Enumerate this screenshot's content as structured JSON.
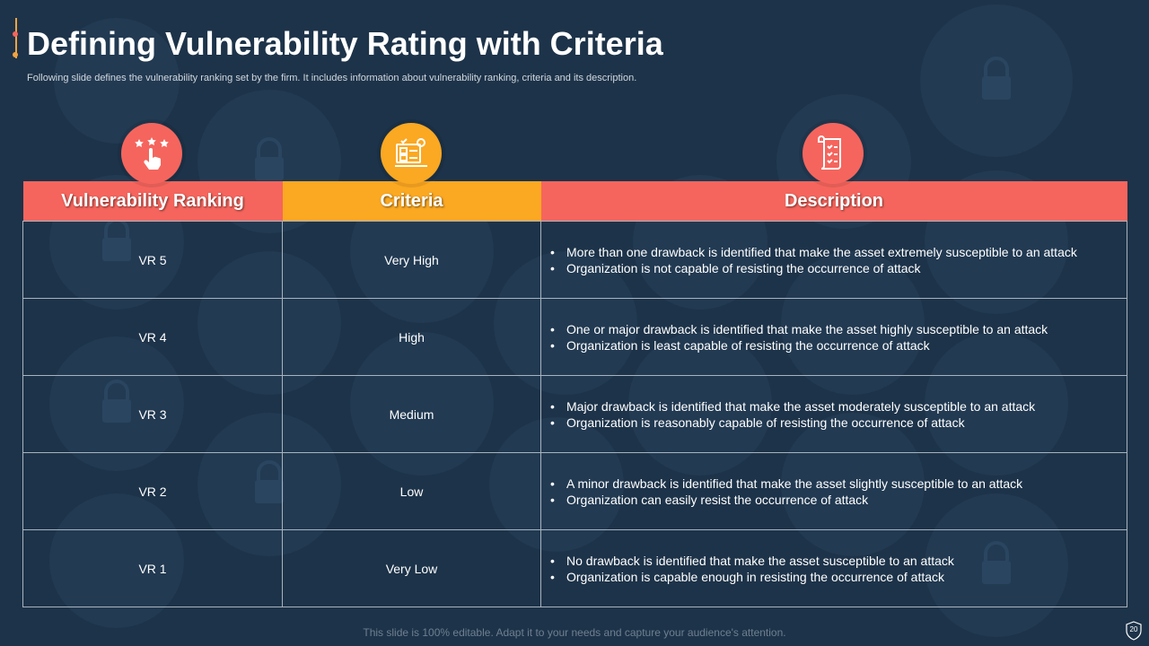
{
  "slide": {
    "title": "Defining Vulnerability Rating with Criteria",
    "subtitle": "Following slide defines the vulnerability ranking set by the firm. It includes information about vulnerability ranking, criteria and its description.",
    "footer": "This slide is 100% editable. Adapt it to your needs and capture your audience's attention.",
    "page_number": "20"
  },
  "colors": {
    "background": "#1d3349",
    "coral": "#f5655d",
    "orange": "#fba822",
    "accent_bar": "#f4a340"
  },
  "icons": {
    "ranking": "star-rating-hand-icon",
    "criteria": "checklist-gear-icon",
    "description": "document-list-icon"
  },
  "table": {
    "headers": [
      "Vulnerability  Ranking",
      "Criteria",
      "Description"
    ],
    "rows": [
      {
        "rank": "VR 5",
        "criteria": "Very High",
        "desc": [
          "More than one drawback is identified that make the asset extremely susceptible to an attack",
          "Organization is not capable of resisting the occurrence of attack"
        ]
      },
      {
        "rank": "VR 4",
        "criteria": "High",
        "desc": [
          "One or major drawback is identified that make the asset highly susceptible to an attack",
          "Organization is least capable of resisting the occurrence of attack"
        ]
      },
      {
        "rank": "VR 3",
        "criteria": "Medium",
        "desc": [
          "Major drawback is identified that make the asset moderately susceptible to an attack",
          "Organization is reasonably capable of resisting the occurrence of attack"
        ]
      },
      {
        "rank": "VR 2",
        "criteria": "Low",
        "desc": [
          "A minor drawback is identified that make the asset slightly susceptible to an attack",
          "Organization can easily resist the occurrence of attack"
        ]
      },
      {
        "rank": "VR 1",
        "criteria": "Very Low",
        "desc": [
          "No drawback is identified that make the asset susceptible to an attack",
          "Organization is capable enough in resisting the occurrence of attack"
        ]
      }
    ]
  }
}
